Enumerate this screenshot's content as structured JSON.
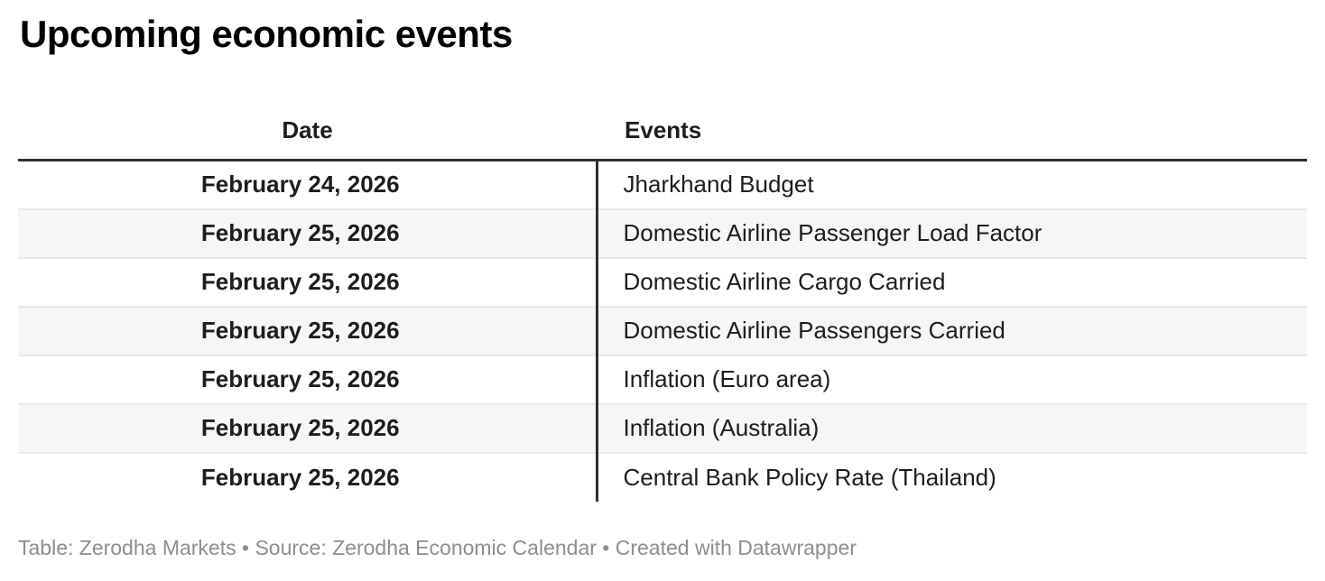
{
  "colors": {
    "border_dark": "#2e2e2e",
    "row_alt_bg": "#f6f6f6",
    "row_border": "#e9e9e9",
    "text_primary": "#1d1d1d",
    "footer_text": "#8e8e8e"
  },
  "chart_data": {
    "type": "table",
    "title": "Upcoming economic events",
    "columns": [
      "Date",
      "Events"
    ],
    "rows": [
      [
        "February 24, 2026",
        "Jharkhand Budget"
      ],
      [
        "February 25, 2026",
        "Domestic Airline Passenger Load Factor"
      ],
      [
        "February 25, 2026",
        "Domestic Airline Cargo Carried"
      ],
      [
        "February 25, 2026",
        "Domestic Airline Passengers Carried"
      ],
      [
        "February 25, 2026",
        "Inflation (Euro area)"
      ],
      [
        "February 25, 2026",
        "Inflation (Australia)"
      ],
      [
        "February 25, 2026",
        "Central Bank Policy Rate (Thailand)"
      ]
    ],
    "layout_hints": {
      "date_column_style": "bold, centered",
      "events_column_style": "regular, left-aligned",
      "zebra_striping": "even rows shaded",
      "column_divider": "dark vertical rule between columns"
    },
    "footer": "Table: Zerodha Markets • Source: Zerodha Economic Calendar • Created with Datawrapper"
  },
  "footer": {
    "table_label": "Table:",
    "table_value": "Zerodha Markets",
    "separator": "•",
    "source_label": "Source:",
    "source_value": "Zerodha Economic Calendar",
    "created_label": "Created with",
    "created_value": "Datawrapper"
  }
}
